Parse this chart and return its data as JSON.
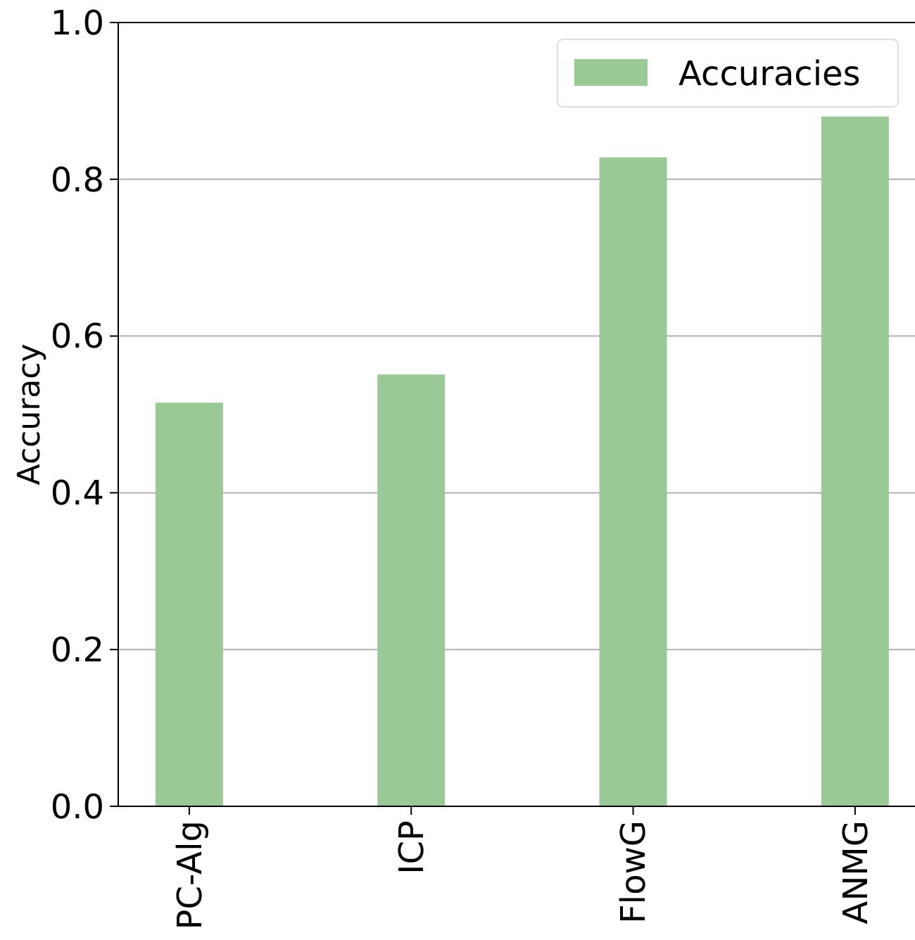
{
  "chart_data": {
    "type": "bar",
    "ylabel": "Accuracy",
    "categories": [
      "PC-Alg",
      "ICP",
      "FlowG",
      "ANMG"
    ],
    "series": [
      {
        "name": "Accuracies",
        "color": "#99ca96",
        "values": [
          0.515,
          0.551,
          0.828,
          0.88
        ]
      }
    ],
    "ylim": [
      0,
      1
    ],
    "yticks": [
      {
        "value": 0,
        "label": "0.0"
      },
      {
        "value": 0.2,
        "label": "0.2"
      },
      {
        "value": 0.4,
        "label": "0.4"
      },
      {
        "value": 0.6,
        "label": "0.6"
      },
      {
        "value": 0.8,
        "label": "0.8"
      },
      {
        "value": 1,
        "label": "1.0"
      }
    ],
    "grid": "y",
    "legend": "top right"
  }
}
